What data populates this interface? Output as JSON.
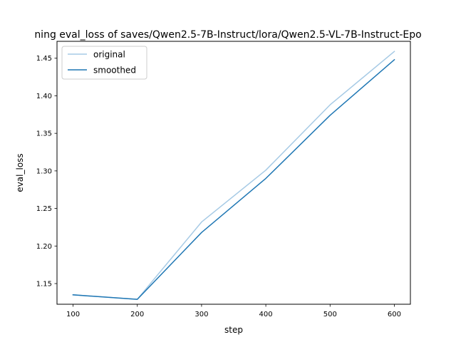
{
  "chart_data": {
    "type": "line",
    "title": "ning eval_loss of saves/Qwen2.5-7B-Instruct/lora/Qwen2.5-VL-7B-Instruct-Epo",
    "xlabel": "step",
    "ylabel": "eval_loss",
    "xlim": [
      75,
      625
    ],
    "ylim": [
      1.1225,
      1.4725
    ],
    "x_ticks": [
      "100",
      "200",
      "300",
      "400",
      "500",
      "600"
    ],
    "y_ticks": [
      "1.15",
      "1.20",
      "1.25",
      "1.30",
      "1.35",
      "1.40",
      "1.45"
    ],
    "grid": false,
    "legend_position": "top-left",
    "x": [
      100,
      200,
      300,
      400,
      500,
      600
    ],
    "series": [
      {
        "name": "original",
        "color": "#a6cae5",
        "values": [
          1.135,
          1.129,
          1.232,
          1.301,
          1.388,
          1.459
        ]
      },
      {
        "name": "smoothed",
        "color": "#1f77b4",
        "values": [
          1.135,
          1.129,
          1.218,
          1.29,
          1.374,
          1.448
        ]
      }
    ]
  }
}
